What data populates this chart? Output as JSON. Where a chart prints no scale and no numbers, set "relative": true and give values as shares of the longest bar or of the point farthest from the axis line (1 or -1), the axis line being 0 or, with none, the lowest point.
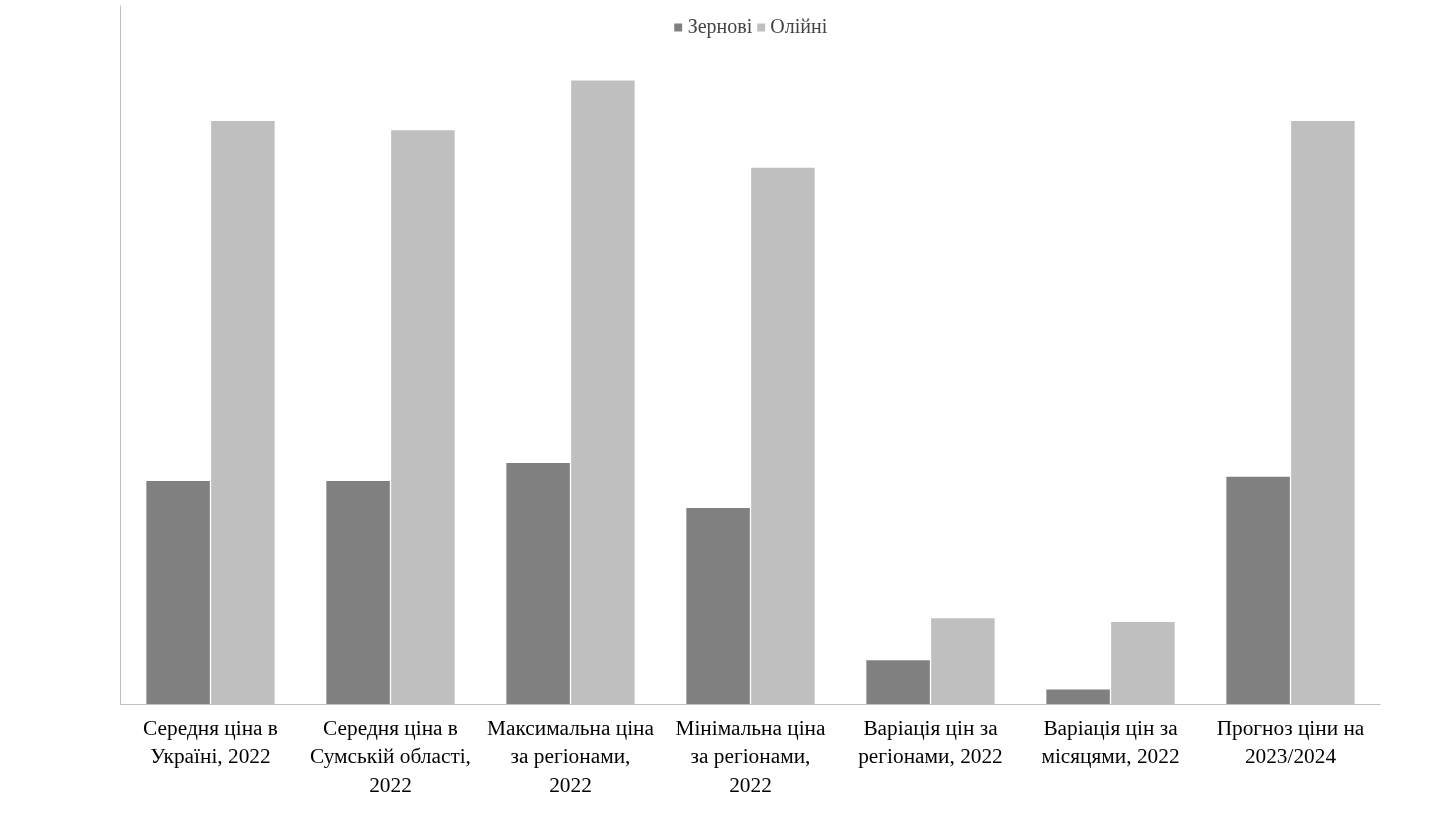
{
  "chart_data": {
    "type": "bar",
    "relative": true,
    "legend": "top",
    "grid": false,
    "categories": [
      "Середня ціна в Україні, 2022",
      "Середня ціна в Сумській області, 2022",
      "Максимальна ціна за регіонами, 2022",
      "Мінімальна ціна за регіонами, 2022",
      "Варіація цін за регіонами, 2022",
      "Варіація цін за місяцями, 2022",
      "Прогноз ціни на 2023/2024"
    ],
    "series": [
      {
        "name": "Зернові",
        "color": "#808080",
        "values": [
          0.358,
          0.358,
          0.387,
          0.315,
          0.071,
          0.024,
          0.365
        ]
      },
      {
        "name": "Олійні",
        "color": "#bfbfbf",
        "values": [
          0.935,
          0.92,
          1.0,
          0.86,
          0.138,
          0.132,
          0.935
        ]
      }
    ]
  }
}
